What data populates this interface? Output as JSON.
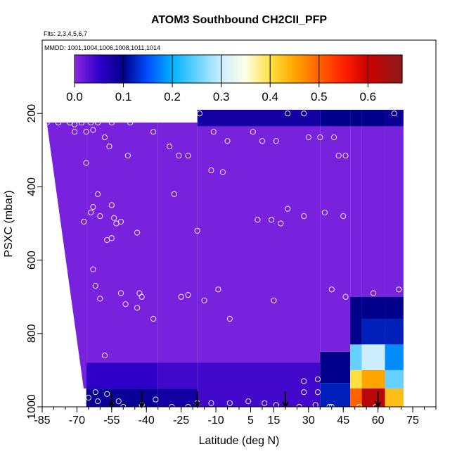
{
  "chart_data": {
    "type": "heatmap",
    "title": "ATOM3 Southbound CH2CII_PFP",
    "flights_note": "Flts: 2,3,4,5,6,7",
    "dates_note": "MMDD: 1001,1004,1006,1008,1011,1014",
    "xlabel": "Latitude (deg N)",
    "ylabel": "PSXC (mbar)",
    "xlim": [
      -85,
      85
    ],
    "ylim": [
      1000,
      0
    ],
    "x_ticks": [
      -85,
      -70,
      -55,
      -40,
      -25,
      -10,
      5,
      15,
      30,
      45,
      60,
      75
    ],
    "x_tick_labels": [
      "-85",
      "-70",
      "-55",
      "-40",
      "-25",
      "-10",
      "5",
      "15",
      "30",
      "45",
      "60",
      "75"
    ],
    "y_ticks": [
      200,
      400,
      600,
      800,
      1000
    ],
    "y_tick_labels": [
      "200",
      "400",
      "600",
      "800",
      "1000"
    ],
    "colorbar": {
      "range": [
        0,
        0.67
      ],
      "ticks": [
        0.0,
        0.1,
        0.2,
        0.3,
        0.4,
        0.5,
        0.6
      ],
      "tick_labels": [
        "0.0",
        "0.1",
        "0.2",
        "0.3",
        "0.4",
        "0.5",
        "0.6"
      ],
      "stops": [
        {
          "v": 0.0,
          "c": "#8a2be2"
        },
        {
          "v": 0.05,
          "c": "#3000c8"
        },
        {
          "v": 0.1,
          "c": "#00008b"
        },
        {
          "v": 0.15,
          "c": "#0050ff"
        },
        {
          "v": 0.2,
          "c": "#00b4ff"
        },
        {
          "v": 0.3,
          "c": "#cceeff"
        },
        {
          "v": 0.35,
          "c": "#ffffe8"
        },
        {
          "v": 0.4,
          "c": "#ffe040"
        },
        {
          "v": 0.45,
          "c": "#ffa500"
        },
        {
          "v": 0.55,
          "c": "#ff2000"
        },
        {
          "v": 0.6,
          "c": "#cc0000"
        },
        {
          "v": 0.67,
          "c": "#8b1a1a"
        }
      ]
    },
    "profile_arrows_lat": [
      -55,
      -42,
      -18,
      20,
      60
    ],
    "field_columns": [
      {
        "lat0": -83,
        "lat1": -66,
        "ptop": 225,
        "pbot": 950,
        "cells": [
          {
            "p0": 0,
            "p1": 1000,
            "v": 0.01
          }
        ]
      },
      {
        "lat0": -66,
        "lat1": -35,
        "ptop": 225,
        "pbot": 1000,
        "cells": [
          {
            "p0": 0,
            "p1": 880,
            "v": 0.01
          },
          {
            "p0": 880,
            "p1": 950,
            "v": 0.05
          },
          {
            "p0": 950,
            "p1": 1000,
            "v": 0.09
          }
        ]
      },
      {
        "lat0": -35,
        "lat1": -18,
        "ptop": 225,
        "pbot": 1000,
        "cells": [
          {
            "p0": 0,
            "p1": 880,
            "v": 0.01
          },
          {
            "p0": 880,
            "p1": 950,
            "v": 0.04
          },
          {
            "p0": 950,
            "p1": 1000,
            "v": 0.08
          }
        ]
      },
      {
        "lat0": -18,
        "lat1": 35,
        "ptop": 190,
        "pbot": 1000,
        "cells": [
          {
            "p0": 0,
            "p1": 235,
            "v": 0.08
          },
          {
            "p0": 235,
            "p1": 880,
            "v": 0.01
          },
          {
            "p0": 880,
            "p1": 1000,
            "v": 0.04
          }
        ]
      },
      {
        "lat0": 35,
        "lat1": 48,
        "ptop": 190,
        "pbot": 1000,
        "cells": [
          {
            "p0": 0,
            "p1": 235,
            "v": 0.1
          },
          {
            "p0": 235,
            "p1": 850,
            "v": 0.01
          },
          {
            "p0": 850,
            "p1": 935,
            "v": 0.1
          },
          {
            "p0": 935,
            "p1": 1000,
            "v": 0.12
          }
        ]
      },
      {
        "lat0": 48,
        "lat1": 53,
        "ptop": 190,
        "pbot": 1000,
        "cells": [
          {
            "p0": 0,
            "p1": 235,
            "v": 0.1
          },
          {
            "p0": 235,
            "p1": 700,
            "v": 0.01
          },
          {
            "p0": 700,
            "p1": 830,
            "v": 0.1
          },
          {
            "p0": 830,
            "p1": 900,
            "v": 0.25
          },
          {
            "p0": 900,
            "p1": 950,
            "v": 0.4
          },
          {
            "p0": 950,
            "p1": 1000,
            "v": 0.5
          }
        ]
      },
      {
        "lat0": 53,
        "lat1": 63,
        "ptop": 190,
        "pbot": 1000,
        "cells": [
          {
            "p0": 0,
            "p1": 235,
            "v": 0.1
          },
          {
            "p0": 235,
            "p1": 700,
            "v": 0.01
          },
          {
            "p0": 700,
            "p1": 760,
            "v": 0.1
          },
          {
            "p0": 760,
            "p1": 830,
            "v": 0.12
          },
          {
            "p0": 830,
            "p1": 900,
            "v": 0.3
          },
          {
            "p0": 900,
            "p1": 950,
            "v": 0.45
          },
          {
            "p0": 950,
            "p1": 1000,
            "v": 0.62
          }
        ]
      },
      {
        "lat0": 63,
        "lat1": 71,
        "ptop": 190,
        "pbot": 1000,
        "cells": [
          {
            "p0": 0,
            "p1": 235,
            "v": 0.09
          },
          {
            "p0": 235,
            "p1": 700,
            "v": 0.01
          },
          {
            "p0": 700,
            "p1": 760,
            "v": 0.1
          },
          {
            "p0": 760,
            "p1": 830,
            "v": 0.12
          },
          {
            "p0": 830,
            "p1": 900,
            "v": 0.18
          },
          {
            "p0": 900,
            "p1": 950,
            "v": 0.25
          },
          {
            "p0": 950,
            "p1": 1000,
            "v": 0.43
          }
        ]
      }
    ],
    "sample_points": [
      [
        -83,
        225
      ],
      [
        -78,
        225
      ],
      [
        -73,
        225
      ],
      [
        -71,
        230
      ],
      [
        -68,
        225
      ],
      [
        -64,
        225
      ],
      [
        -61,
        225
      ],
      [
        -55,
        225
      ],
      [
        -47,
        225
      ],
      [
        -71,
        250
      ],
      [
        -66,
        250
      ],
      [
        -63,
        245
      ],
      [
        -58,
        265
      ],
      [
        -56,
        290
      ],
      [
        -66,
        335
      ],
      [
        -37,
        250
      ],
      [
        -48,
        315
      ],
      [
        -30,
        290
      ],
      [
        -26,
        315
      ],
      [
        -22,
        315
      ],
      [
        -17,
        200
      ],
      [
        -11,
        250
      ],
      [
        -5,
        275
      ],
      [
        6,
        250
      ],
      [
        10,
        275
      ],
      [
        16,
        275
      ],
      [
        21,
        200
      ],
      [
        28,
        200
      ],
      [
        30,
        265
      ],
      [
        35,
        265
      ],
      [
        41,
        265
      ],
      [
        43,
        315
      ],
      [
        46,
        315
      ],
      [
        -67,
        495
      ],
      [
        -64,
        470
      ],
      [
        -63,
        455
      ],
      [
        -60,
        480
      ],
      [
        -57,
        545
      ],
      [
        -55,
        540
      ],
      [
        -61,
        420
      ],
      [
        -55,
        450
      ],
      [
        -53,
        500
      ],
      [
        -54,
        485
      ],
      [
        -51,
        495
      ],
      [
        -44,
        525
      ],
      [
        -28,
        420
      ],
      [
        -18,
        520
      ],
      [
        -12,
        355
      ],
      [
        -7,
        360
      ],
      [
        -60,
        705
      ],
      [
        -63,
        625
      ],
      [
        -62,
        670
      ],
      [
        -51,
        690
      ],
      [
        -49,
        720
      ],
      [
        -43,
        690
      ],
      [
        -42,
        700
      ],
      [
        -44,
        730
      ],
      [
        -37,
        760
      ],
      [
        -25,
        700
      ],
      [
        -22,
        695
      ],
      [
        -15,
        710
      ],
      [
        -9,
        680
      ],
      [
        -4,
        760
      ],
      [
        -4,
        990
      ],
      [
        -12,
        990
      ],
      [
        -18,
        990
      ],
      [
        -36,
        980
      ],
      [
        -42,
        995
      ],
      [
        -52,
        985
      ],
      [
        -61,
        985
      ],
      [
        -57,
        965
      ],
      [
        -50,
        1000
      ],
      [
        -22,
        1000
      ],
      [
        -29,
        1000
      ],
      [
        -62,
        960
      ],
      [
        -65,
        975
      ],
      [
        -58,
        860
      ],
      [
        8,
        490
      ],
      [
        14,
        490
      ],
      [
        18,
        500
      ],
      [
        21,
        460
      ],
      [
        28,
        480
      ],
      [
        37,
        470
      ],
      [
        40,
        680
      ],
      [
        45,
        480
      ],
      [
        15,
        710
      ],
      [
        4,
        985
      ],
      [
        11,
        990
      ],
      [
        16,
        995
      ],
      [
        26,
        1000
      ],
      [
        33,
        995
      ],
      [
        39,
        1000
      ],
      [
        28,
        930
      ],
      [
        28,
        960
      ],
      [
        34,
        925
      ],
      [
        34,
        960
      ],
      [
        40,
        1000
      ],
      [
        52,
        1000
      ],
      [
        59,
        1000
      ],
      [
        67,
        200
      ],
      [
        69,
        680
      ],
      [
        46,
        700
      ],
      [
        58,
        690
      ]
    ]
  }
}
